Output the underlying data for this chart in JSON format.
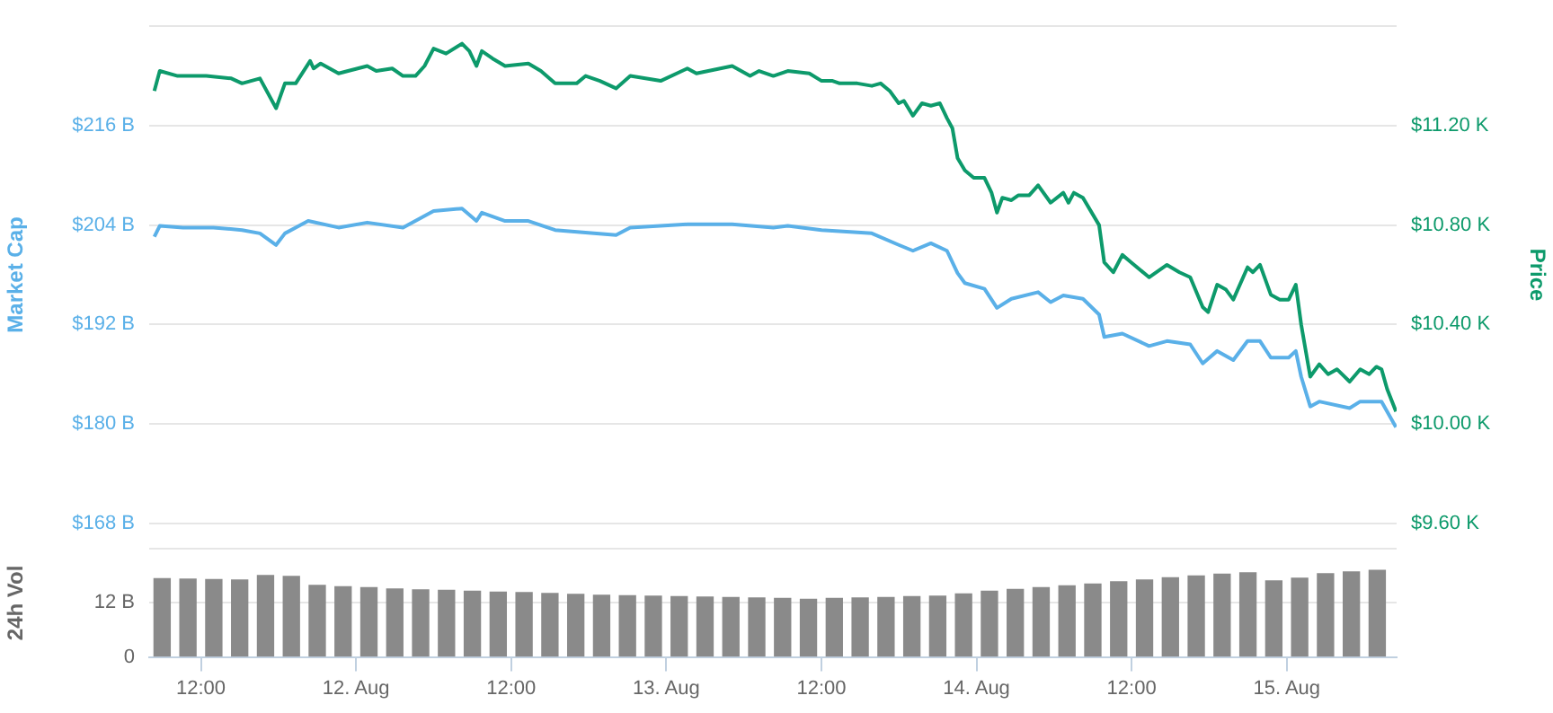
{
  "chart_data": [
    {
      "type": "line",
      "ylabel": "Market Cap",
      "y2label": "Price",
      "xlim": [
        "--08-11T08:00",
        "--08-15T08:30"
      ],
      "ylim": [
        168,
        228
      ],
      "yticks": [
        {
          "value": 168,
          "label": "$168 B"
        },
        {
          "value": 180,
          "label": "$180 B"
        },
        {
          "value": 192,
          "label": "$192 B"
        },
        {
          "value": 204,
          "label": "$204 B"
        },
        {
          "value": 216,
          "label": "$216 B"
        },
        {
          "value": 228,
          "label": null
        }
      ],
      "y2lim": [
        9.6,
        11.6
      ],
      "y2ticks": [
        {
          "value": 9.6,
          "label": "$9.60 K"
        },
        {
          "value": 10,
          "label": "$10.00 K"
        },
        {
          "value": 10.4,
          "label": "$10.40 K"
        },
        {
          "value": 10.8,
          "label": "$10.80 K"
        },
        {
          "value": 11.2,
          "label": "$11.20 K"
        },
        {
          "value": 11.6,
          "label": null
        }
      ],
      "grid": "y",
      "legend": false,
      "tick_labels": "y",
      "marker": "none",
      "line_style": "solid",
      "series": [
        {
          "color": "#5ab0e8",
          "x": [
            "--08-11T08:24",
            "--08-11T08:49",
            "--08-11T10:37",
            "--08-11T12:58",
            "--08-11T15:11",
            "--08-11T16:34",
            "--08-11T17:49",
            "--08-11T18:30",
            "--08-11T20:18",
            "--08-11T22:39",
            "--08-12T00:52",
            "--08-12T03:38",
            "--08-12T06:00",
            "--08-12T08:12",
            "--08-12T09:19",
            "--08-12T09:44",
            "--08-12T11:32",
            "--08-12T13:20",
            "--08-12T15:24",
            "--08-12T20:07",
            "--08-12T21:13",
            "--08-13T01:38",
            "--08-13T05:06",
            "--08-13T08:17",
            "--08-13T09:24",
            "--08-13T12:01",
            "--08-13T15:54",
            "--08-13T17:59",
            "--08-13T19:05",
            "--08-13T20:28",
            "--08-13T21:43",
            "--08-13T22:32",
            "--08-13T23:06",
            "--08-14T00:37",
            "--08-14T01:35",
            "--08-14T02:42",
            "--08-14T04:46",
            "--08-14T05:44",
            "--08-14T06:43",
            "--08-14T08:14",
            "--08-14T09:29",
            "--08-14T09:53",
            "--08-14T11:17",
            "--08-14T13:21",
            "--08-14T14:44",
            "--08-14T16:32",
            "--08-14T17:30",
            "--08-14T18:37",
            "--08-14T19:52",
            "--08-14T20:58",
            "--08-14T21:56",
            "--08-14T22:46",
            "--08-15T00:09",
            "--08-15T00:42",
            "--08-15T01:07",
            "--08-15T01:49",
            "--08-15T02:31",
            "--08-15T04:52",
            "--08-15T05:41",
            "--08-15T07:20",
            "--08-15T08:27"
          ],
          "values": [
            202.6,
            203.9,
            203.7,
            203.7,
            203.4,
            203.0,
            201.6,
            203.0,
            204.5,
            203.7,
            204.3,
            203.7,
            205.7,
            206.0,
            204.5,
            205.5,
            204.5,
            204.5,
            203.4,
            202.8,
            203.7,
            204.1,
            204.1,
            203.7,
            203.9,
            203.4,
            203.0,
            201.6,
            200.9,
            201.8,
            200.9,
            198.2,
            197.0,
            196.3,
            194.0,
            195.1,
            195.9,
            194.7,
            195.5,
            195.1,
            193.2,
            190.5,
            190.9,
            189.4,
            190.0,
            189.6,
            187.3,
            188.8,
            187.7,
            190.0,
            190.0,
            188.0,
            188.0,
            188.8,
            185.7,
            182.1,
            182.7,
            181.9,
            182.7,
            182.7,
            179.6
          ]
        },
        {
          "color": "#0d9a6b",
          "axis": "y2",
          "x": [
            "--08-11T08:24",
            "--08-11T08:49",
            "--08-11T10:12",
            "--08-11T12:25",
            "--08-11T14:21",
            "--08-11T15:11",
            "--08-11T16:34",
            "--08-11T17:49",
            "--08-11T18:30",
            "--08-11T19:20",
            "--08-11T20:27",
            "--08-11T20:43",
            "--08-11T21:16",
            "--08-11T22:39",
            "--08-12T00:52",
            "--08-12T01:34",
            "--08-12T02:48",
            "--08-12T03:38",
            "--08-12T04:36",
            "--08-12T05:18",
            "--08-12T06:00",
            "--08-12T06:58",
            "--08-12T08:12",
            "--08-12T08:46",
            "--08-12T09:19",
            "--08-12T09:44",
            "--08-12T10:34",
            "--08-12T11:32",
            "--08-12T13:20",
            "--08-12T14:18",
            "--08-12T15:24",
            "--08-12T17:04",
            "--08-12T17:46",
            "--08-12T18:52",
            "--08-12T20:07",
            "--08-12T21:13",
            "--08-12T23:34",
            "--08-13T01:38",
            "--08-13T02:20",
            "--08-13T05:06",
            "--08-13T06:29",
            "--08-13T07:11",
            "--08-13T08:17",
            "--08-13T09:24",
            "--08-13T11:04",
            "--08-13T12:01",
            "--08-13T12:52",
            "--08-13T13:25",
            "--08-13T14:47",
            "--08-13T15:54",
            "--08-13T16:35",
            "--08-13T17:17",
            "--08-13T17:59",
            "--08-13T18:23",
            "--08-13T19:05",
            "--08-13T19:47",
            "--08-13T20:28",
            "--08-13T21:10",
            "--08-13T21:43",
            "--08-13T22:08",
            "--08-13T22:32",
            "--08-13T23:06",
            "--08-13T23:47",
            "--08-14T00:37",
            "--08-14T01:10",
            "--08-14T01:35",
            "--08-14T02:00",
            "--08-14T02:42",
            "--08-14T03:15",
            "--08-14T04:05",
            "--08-14T04:46",
            "--08-14T05:44",
            "--08-14T06:43",
            "--08-14T07:07",
            "--08-14T07:32",
            "--08-14T08:14",
            "--08-14T09:29",
            "--08-14T09:53",
            "--08-14T10:35",
            "--08-14T11:17",
            "--08-14T11:58",
            "--08-14T13:21",
            "--08-14T14:44",
            "--08-14T15:42",
            "--08-14T16:32",
            "--08-14T17:30",
            "--08-14T17:55",
            "--08-14T18:37",
            "--08-14T19:18",
            "--08-14T19:52",
            "--08-14T20:58",
            "--08-14T21:23",
            "--08-14T21:56",
            "--08-14T22:46",
            "--08-14T23:28",
            "--08-15T00:09",
            "--08-15T00:42",
            "--08-15T01:07",
            "--08-15T01:49",
            "--08-15T02:31",
            "--08-15T03:12",
            "--08-15T03:53",
            "--08-15T04:52",
            "--08-15T05:41",
            "--08-15T06:23",
            "--08-15T06:56",
            "--08-15T07:20",
            "--08-15T07:46",
            "--08-15T08:27"
          ],
          "values": [
            11.34,
            11.42,
            11.4,
            11.4,
            11.39,
            11.37,
            11.39,
            11.27,
            11.37,
            11.37,
            11.46,
            11.43,
            11.45,
            11.41,
            11.44,
            11.42,
            11.43,
            11.4,
            11.4,
            11.44,
            11.51,
            11.49,
            11.53,
            11.5,
            11.44,
            11.5,
            11.47,
            11.44,
            11.45,
            11.42,
            11.37,
            11.37,
            11.4,
            11.38,
            11.35,
            11.4,
            11.38,
            11.43,
            11.41,
            11.44,
            11.4,
            11.42,
            11.4,
            11.42,
            11.41,
            11.38,
            11.38,
            11.37,
            11.37,
            11.36,
            11.37,
            11.34,
            11.29,
            11.3,
            11.24,
            11.29,
            11.28,
            11.29,
            11.23,
            11.19,
            11.07,
            11.02,
            10.99,
            10.99,
            10.93,
            10.85,
            10.91,
            10.9,
            10.92,
            10.92,
            10.96,
            10.89,
            10.93,
            10.89,
            10.93,
            10.91,
            10.8,
            10.65,
            10.61,
            10.68,
            10.65,
            10.59,
            10.64,
            10.61,
            10.59,
            10.47,
            10.45,
            10.56,
            10.54,
            10.5,
            10.63,
            10.61,
            10.64,
            10.52,
            10.5,
            10.5,
            10.56,
            10.4,
            10.19,
            10.24,
            10.2,
            10.22,
            10.17,
            10.22,
            10.2,
            10.23,
            10.22,
            10.14,
            10.05
          ]
        }
      ]
    },
    {
      "type": "bar",
      "ylabel": "24h Vol",
      "xlim": [
        "--08-11T08:00",
        "--08-15T08:30"
      ],
      "ylim": [
        0,
        24
      ],
      "yticks": [
        0,
        {
          "value": 12,
          "label": "12 B"
        },
        {
          "value": 24,
          "label": null
        }
      ],
      "xticks": [
        {
          "value": "--08-11T12:00",
          "label": "12:00"
        },
        {
          "value": "--08-12T00:00",
          "label": "12. Aug"
        },
        {
          "value": "--08-12T12:00",
          "label": "12:00"
        },
        {
          "value": "--08-13T00:00",
          "label": "13. Aug"
        },
        {
          "value": "--08-13T12:00",
          "label": "12:00"
        },
        {
          "value": "--08-14T00:00",
          "label": "14. Aug"
        },
        {
          "value": "--08-14T12:00",
          "label": "12:00"
        },
        {
          "value": "--08-15T00:00",
          "label": "15. Aug"
        }
      ],
      "grid": "y",
      "legend": false,
      "series": [
        {
          "color": "#8a8a8a",
          "x": [
            "--08-11T09:00",
            "--08-11T11:00",
            "--08-11T13:00",
            "--08-11T15:00",
            "--08-11T17:00",
            "--08-11T19:00",
            "--08-11T21:00",
            "--08-11T23:00",
            "--08-12T01:00",
            "--08-12T03:00",
            "--08-12T05:00",
            "--08-12T07:00",
            "--08-12T09:00",
            "--08-12T11:00",
            "--08-12T13:00",
            "--08-12T15:00",
            "--08-12T17:00",
            "--08-12T19:00",
            "--08-12T21:00",
            "--08-12T23:00",
            "--08-13T01:00",
            "--08-13T03:00",
            "--08-13T05:00",
            "--08-13T07:00",
            "--08-13T09:00",
            "--08-13T11:00",
            "--08-13T13:00",
            "--08-13T15:00",
            "--08-13T17:00",
            "--08-13T19:00",
            "--08-13T21:00",
            "--08-13T23:00",
            "--08-14T01:00",
            "--08-14T03:00",
            "--08-14T05:00",
            "--08-14T07:00",
            "--08-14T09:00",
            "--08-14T11:00",
            "--08-14T13:00",
            "--08-14T15:00",
            "--08-14T17:00",
            "--08-14T19:00",
            "--08-14T21:00",
            "--08-14T23:00",
            "--08-15T01:00",
            "--08-15T03:00",
            "--08-15T05:00",
            "--08-15T07:00"
          ],
          "values": [
            17.4,
            17.3,
            17.2,
            17.1,
            18.1,
            17.9,
            15.9,
            15.6,
            15.4,
            15.1,
            14.9,
            14.8,
            14.6,
            14.4,
            14.3,
            14.1,
            13.9,
            13.7,
            13.6,
            13.5,
            13.4,
            13.3,
            13.2,
            13.1,
            13.0,
            12.8,
            13.0,
            13.1,
            13.2,
            13.4,
            13.5,
            14.0,
            14.6,
            15.0,
            15.4,
            15.8,
            16.2,
            16.7,
            17.1,
            17.6,
            18.0,
            18.4,
            18.7,
            16.9,
            17.5,
            18.5,
            18.9,
            19.2
          ]
        }
      ]
    }
  ]
}
